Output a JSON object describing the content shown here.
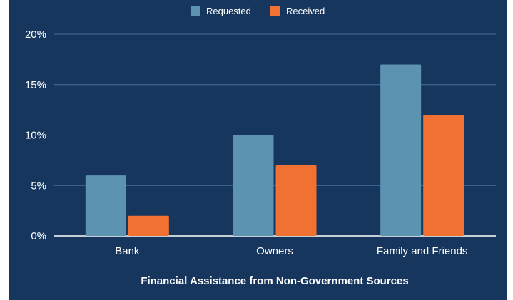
{
  "chart_data": {
    "type": "bar",
    "categories": [
      "Bank",
      "Owners",
      "Family and Friends"
    ],
    "series": [
      {
        "name": "Requested",
        "values": [
          6,
          10,
          17
        ],
        "color": "#5b93b1"
      },
      {
        "name": "Received",
        "values": [
          2,
          7,
          12
        ],
        "color": "#f07132"
      }
    ],
    "xlabel": "Financial Assistance from Non-Government Sources",
    "ylabel": "",
    "ylim": [
      0,
      20
    ],
    "yticks": [
      "0%",
      "5%",
      "10%",
      "15%",
      "20%"
    ],
    "ytick_values": [
      0,
      5,
      10,
      15,
      20
    ],
    "grid": true,
    "legend_position": "top-center",
    "background": "#17365d"
  }
}
